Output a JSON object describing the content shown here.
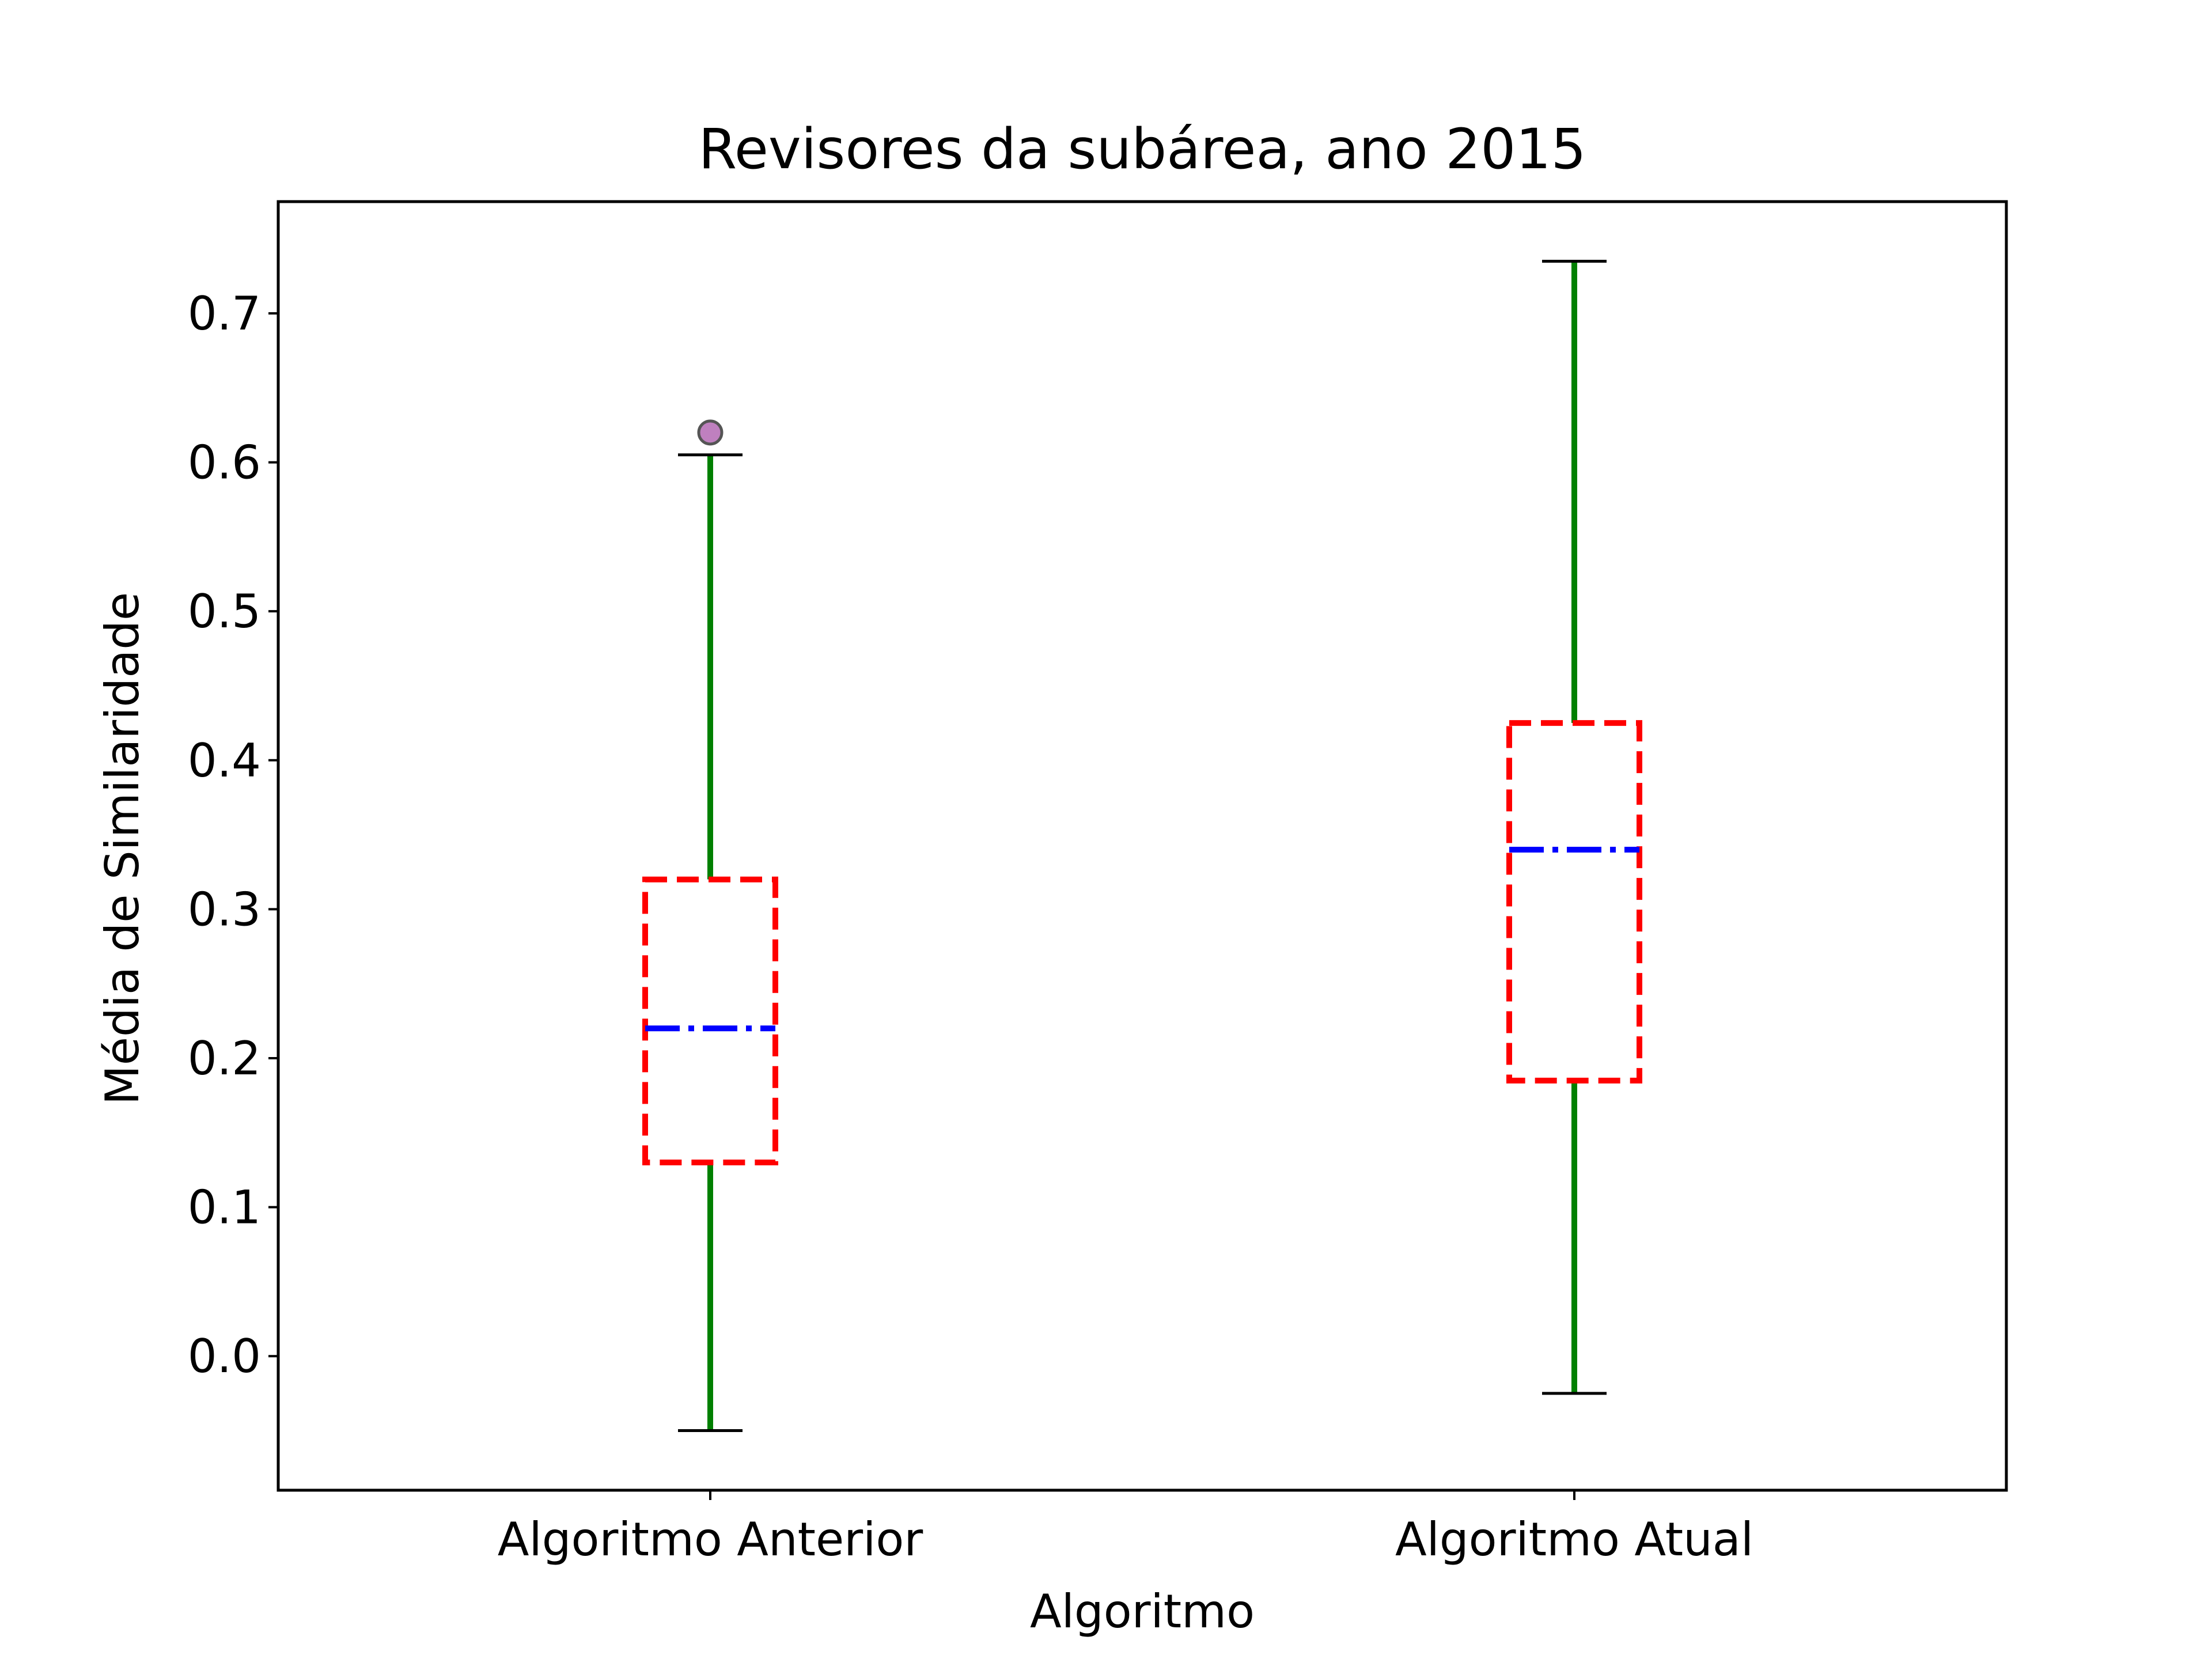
{
  "chart_data": {
    "type": "box",
    "title": "Revisores da subárea, ano 2015",
    "xlabel": "Algoritmo",
    "ylabel": "Média de Similaridade",
    "categories": [
      "Algoritmo Anterior",
      "Algoritmo Atual"
    ],
    "ylim": [
      -0.09,
      0.775
    ],
    "yticks": [
      "0.0",
      "0.1",
      "0.2",
      "0.3",
      "0.4",
      "0.5",
      "0.6",
      "0.7"
    ],
    "grid": false,
    "boxes": [
      {
        "category": "Algoritmo Anterior",
        "whisker_low": -0.05,
        "q1": 0.13,
        "median": 0.22,
        "q3": 0.32,
        "whisker_high": 0.605,
        "outliers": [
          0.62
        ]
      },
      {
        "category": "Algoritmo Atual",
        "whisker_low": -0.025,
        "q1": 0.185,
        "median": 0.34,
        "q3": 0.425,
        "whisker_high": 0.735,
        "outliers": []
      }
    ],
    "colors": {
      "box": "#ff0000",
      "median": "#0000ff",
      "whisker": "#008000",
      "cap": "#000000",
      "outlier_fill": "#bf80bf",
      "outlier_edge": "#555555"
    },
    "styles": {
      "box": "dashed",
      "median": "dash-dot",
      "whisker": "solid"
    }
  }
}
